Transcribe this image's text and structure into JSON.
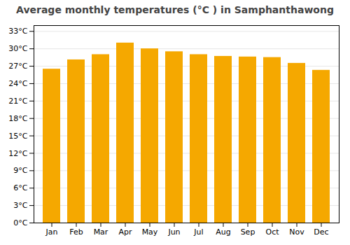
{
  "chart_data": {
    "type": "bar",
    "title": "Average monthly temperatures (°C ) in Samphanthawong",
    "categories": [
      "Jan",
      "Feb",
      "Mar",
      "Apr",
      "May",
      "Jun",
      "Jul",
      "Aug",
      "Sep",
      "Oct",
      "Nov",
      "Dec"
    ],
    "values": [
      26.5,
      28.1,
      29.0,
      31.0,
      30.0,
      29.5,
      29.0,
      28.7,
      28.6,
      28.5,
      27.5,
      26.3
    ],
    "color": "#F5A800",
    "ylim": [
      0,
      34
    ],
    "yticks": [
      {
        "value": 0,
        "label": "0°C"
      },
      {
        "value": 3,
        "label": "3°C"
      },
      {
        "value": 6,
        "label": "6°C"
      },
      {
        "value": 9,
        "label": "9°C"
      },
      {
        "value": 12,
        "label": "12°C"
      },
      {
        "value": 15,
        "label": "15°C"
      },
      {
        "value": 18,
        "label": "18°C"
      },
      {
        "value": 21,
        "label": "21°C"
      },
      {
        "value": 24,
        "label": "24°C"
      },
      {
        "value": 27,
        "label": "27°C"
      },
      {
        "value": 30,
        "label": "30°C"
      },
      {
        "value": 33,
        "label": "33°C"
      }
    ],
    "grid": true
  }
}
